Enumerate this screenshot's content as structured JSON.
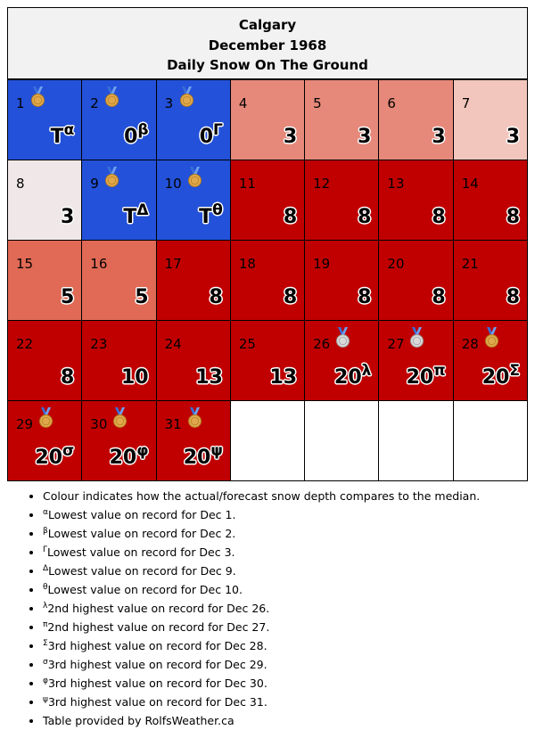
{
  "header": {
    "city": "Calgary",
    "month": "December 1968",
    "subtitle": "Daily Snow On The Ground"
  },
  "colors": {
    "below_median": "#2351d9",
    "far_above_median": "#c00000",
    "above_median": "#e6897a",
    "above_median_2": "#e06a55",
    "slightly_above_median": "#f2c6bd",
    "near_median": "#f0e8e8"
  },
  "days": [
    {
      "day": "1",
      "value": "T",
      "note": "α",
      "medal": "bronze",
      "color": "blue"
    },
    {
      "day": "2",
      "value": "0",
      "note": "β",
      "medal": "bronze",
      "color": "blue"
    },
    {
      "day": "3",
      "value": "0",
      "note": "Γ",
      "medal": "bronze",
      "color": "blue"
    },
    {
      "day": "4",
      "value": "3",
      "note": "",
      "medal": "",
      "color": "salmon"
    },
    {
      "day": "5",
      "value": "3",
      "note": "",
      "medal": "",
      "color": "salmon"
    },
    {
      "day": "6",
      "value": "3",
      "note": "",
      "medal": "",
      "color": "salmon"
    },
    {
      "day": "7",
      "value": "3",
      "note": "",
      "medal": "",
      "color": "pink"
    },
    {
      "day": "8",
      "value": "3",
      "note": "",
      "medal": "",
      "color": "white"
    },
    {
      "day": "9",
      "value": "T",
      "note": "Δ",
      "medal": "bronze",
      "color": "blue"
    },
    {
      "day": "10",
      "value": "T",
      "note": "θ",
      "medal": "bronze",
      "color": "blue"
    },
    {
      "day": "11",
      "value": "8",
      "note": "",
      "medal": "",
      "color": "red"
    },
    {
      "day": "12",
      "value": "8",
      "note": "",
      "medal": "",
      "color": "red"
    },
    {
      "day": "13",
      "value": "8",
      "note": "",
      "medal": "",
      "color": "red"
    },
    {
      "day": "14",
      "value": "8",
      "note": "",
      "medal": "",
      "color": "red"
    },
    {
      "day": "15",
      "value": "5",
      "note": "",
      "medal": "",
      "color": "salmon2"
    },
    {
      "day": "16",
      "value": "5",
      "note": "",
      "medal": "",
      "color": "salmon2"
    },
    {
      "day": "17",
      "value": "8",
      "note": "",
      "medal": "",
      "color": "red"
    },
    {
      "day": "18",
      "value": "8",
      "note": "",
      "medal": "",
      "color": "red"
    },
    {
      "day": "19",
      "value": "8",
      "note": "",
      "medal": "",
      "color": "red"
    },
    {
      "day": "20",
      "value": "8",
      "note": "",
      "medal": "",
      "color": "red"
    },
    {
      "day": "21",
      "value": "8",
      "note": "",
      "medal": "",
      "color": "red"
    },
    {
      "day": "22",
      "value": "8",
      "note": "",
      "medal": "",
      "color": "red"
    },
    {
      "day": "23",
      "value": "10",
      "note": "",
      "medal": "",
      "color": "red"
    },
    {
      "day": "24",
      "value": "13",
      "note": "",
      "medal": "",
      "color": "red"
    },
    {
      "day": "25",
      "value": "13",
      "note": "",
      "medal": "",
      "color": "red"
    },
    {
      "day": "26",
      "value": "20",
      "note": "λ",
      "medal": "silver",
      "color": "red"
    },
    {
      "day": "27",
      "value": "20",
      "note": "π",
      "medal": "silver",
      "color": "red"
    },
    {
      "day": "28",
      "value": "20",
      "note": "Σ",
      "medal": "bronze",
      "color": "red"
    },
    {
      "day": "29",
      "value": "20",
      "note": "σ",
      "medal": "bronze",
      "color": "red"
    },
    {
      "day": "30",
      "value": "20",
      "note": "φ",
      "medal": "bronze",
      "color": "red"
    },
    {
      "day": "31",
      "value": "20",
      "note": "ψ",
      "medal": "bronze",
      "color": "red"
    }
  ],
  "notes": [
    {
      "sym": "",
      "text": "Colour indicates how the actual/forecast snow depth compares to the median."
    },
    {
      "sym": "α",
      "text": "Lowest value on record for Dec 1."
    },
    {
      "sym": "β",
      "text": "Lowest value on record for Dec 2."
    },
    {
      "sym": "Γ",
      "text": "Lowest value on record for Dec 3."
    },
    {
      "sym": "Δ",
      "text": "Lowest value on record for Dec 9."
    },
    {
      "sym": "θ",
      "text": "Lowest value on record for Dec 10."
    },
    {
      "sym": "λ",
      "text": "2nd highest value on record for Dec 26."
    },
    {
      "sym": "π",
      "text": "2nd highest value on record for Dec 27."
    },
    {
      "sym": "Σ",
      "text": "3rd highest value on record for Dec 28."
    },
    {
      "sym": "σ",
      "text": "3rd highest value on record for Dec 29."
    },
    {
      "sym": "φ",
      "text": "3rd highest value on record for Dec 30."
    },
    {
      "sym": "ψ",
      "text": "3rd highest value on record for Dec 31."
    },
    {
      "sym": "",
      "text": "Table provided by RolfsWeather.ca"
    }
  ]
}
